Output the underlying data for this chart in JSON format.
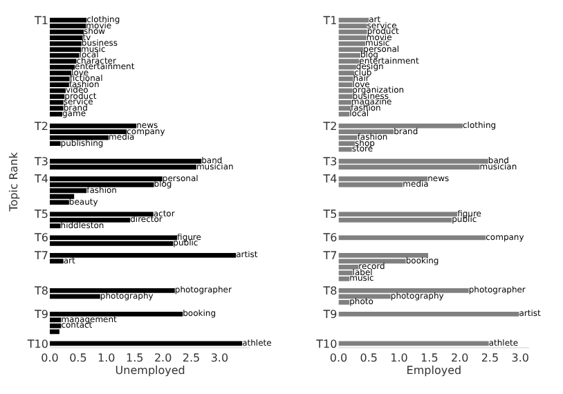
{
  "chart_data": [
    {
      "type": "bar",
      "orientation": "horizontal",
      "xlabel": "Unemployed",
      "ylabel": "Topic Rank",
      "xlim": [
        0,
        3.55
      ],
      "xticks": [
        {
          "value": 0,
          "label": "0.0"
        },
        0.5,
        {
          "value": 1,
          "label": "1.0"
        },
        1.5,
        {
          "value": 2,
          "label": "2.0"
        },
        2.5,
        {
          "value": 3,
          "label": "3.0"
        }
      ],
      "color": "#000000",
      "categories": [
        "T1",
        null,
        null,
        null,
        null,
        null,
        null,
        null,
        null,
        null,
        null,
        null,
        null,
        null,
        null,
        null,
        null,
        null,
        "T2",
        null,
        null,
        null,
        null,
        null,
        "T3",
        null,
        null,
        "T4",
        null,
        null,
        null,
        null,
        null,
        "T5",
        null,
        null,
        null,
        "T6",
        null,
        null,
        "T7",
        null,
        null,
        null,
        null,
        null,
        "T8",
        null,
        null,
        null,
        "T9",
        null,
        null,
        null,
        null,
        "T10"
      ],
      "values": [
        0.65,
        0.64,
        0.6,
        0.58,
        0.56,
        0.55,
        0.52,
        0.47,
        0.44,
        0.38,
        0.35,
        0.34,
        0.28,
        0.26,
        0.24,
        0.24,
        0.22,
        null,
        1.53,
        1.36,
        1.04,
        0.19,
        null,
        null,
        2.68,
        2.59,
        null,
        1.99,
        1.84,
        0.65,
        0.43,
        0.34,
        null,
        1.83,
        1.42,
        0.19,
        null,
        2.25,
        2.18,
        null,
        3.29,
        0.24,
        null,
        null,
        null,
        null,
        2.21,
        0.89,
        null,
        null,
        2.35,
        0.2,
        0.2,
        0.17,
        null,
        3.4
      ],
      "value_labels": [
        "clothing",
        "movie",
        "show",
        "tv",
        "business",
        "music",
        "local",
        "character",
        "entertainment",
        "love",
        "fictional",
        "fashion",
        "video",
        "product",
        "service",
        "brand",
        "game",
        null,
        "news",
        "company",
        "media",
        "publishing",
        null,
        null,
        "band",
        "musician",
        null,
        "personal",
        "blog",
        "fashion",
        null,
        "beauty",
        null,
        "actor",
        "director",
        "hiddleston",
        null,
        "figure",
        "public",
        null,
        "artist",
        "art",
        null,
        null,
        null,
        null,
        "photographer",
        "photography",
        null,
        null,
        "booking",
        "management",
        "contact",
        null,
        null,
        "athlete"
      ]
    },
    {
      "type": "bar",
      "orientation": "horizontal",
      "xlabel": "Employed",
      "xlim": [
        0,
        3.15
      ],
      "xticks": [
        {
          "value": 0,
          "label": "0.0"
        },
        0.5,
        {
          "value": 1,
          "label": "1.0"
        },
        1.5,
        {
          "value": 2,
          "label": "2.0"
        },
        2.5,
        {
          "value": 3,
          "label": "3.0"
        }
      ],
      "color": "#808080",
      "categories": [
        "T1",
        null,
        null,
        null,
        null,
        null,
        null,
        null,
        null,
        null,
        null,
        null,
        null,
        null,
        null,
        null,
        null,
        null,
        "T2",
        null,
        null,
        null,
        null,
        null,
        "T3",
        null,
        null,
        "T4",
        null,
        null,
        null,
        null,
        null,
        "T5",
        null,
        null,
        null,
        "T6",
        null,
        null,
        "T7",
        null,
        null,
        null,
        null,
        null,
        "T8",
        null,
        null,
        null,
        "T9",
        null,
        null,
        null,
        null,
        "T10"
      ],
      "values": [
        0.5,
        0.47,
        0.47,
        0.46,
        0.44,
        0.41,
        0.36,
        0.34,
        0.29,
        0.26,
        0.24,
        0.23,
        0.23,
        0.23,
        0.21,
        0.2,
        0.18,
        null,
        2.05,
        0.91,
        0.31,
        0.27,
        0.22,
        null,
        2.47,
        2.33,
        null,
        1.47,
        1.06,
        null,
        null,
        null,
        null,
        1.96,
        1.87,
        null,
        null,
        2.43,
        null,
        null,
        1.48,
        1.11,
        0.33,
        0.23,
        0.18,
        null,
        2.15,
        0.86,
        0.18,
        null,
        2.98,
        null,
        null,
        null,
        null,
        2.48
      ],
      "value_labels": [
        "art",
        "service",
        "product",
        "movie",
        "music",
        "personal",
        "blog",
        "entertainment",
        "design",
        "club",
        "hair",
        "love",
        "organization",
        "business",
        "magazine",
        "fashion",
        "local",
        null,
        "clothing",
        "brand",
        "fashion",
        "shop",
        "store",
        null,
        "band",
        "musician",
        null,
        "news",
        "media",
        null,
        null,
        null,
        null,
        "figure",
        "public",
        null,
        null,
        "company",
        null,
        null,
        null,
        "booking",
        "record",
        "label",
        "music",
        null,
        "photographer",
        "photography",
        "photo",
        null,
        "artist",
        null,
        null,
        null,
        null,
        "athlete"
      ]
    }
  ]
}
